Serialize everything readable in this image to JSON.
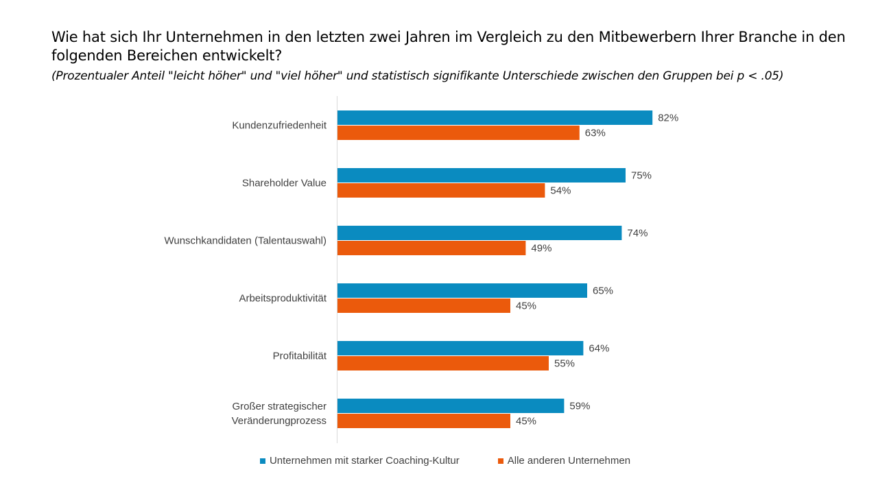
{
  "chart_data": {
    "type": "bar",
    "orientation": "horizontal",
    "title": "Wie hat sich Ihr Unternehmen in den letzten zwei Jahren im Vergleich zu den Mitbewerbern Ihrer Branche in den folgenden Bereichen entwickelt?",
    "subtitle": "(Prozentualer Anteil \"leicht höher\" und \"viel höher\" und statistisch signifikante Unterschiede zwischen den Gruppen bei p < .05)",
    "categories": [
      [
        "Kundenzufriedenheit"
      ],
      [
        "Shareholder Value"
      ],
      [
        "Wunschkandidaten (Talentauswahl)"
      ],
      [
        "Arbeitsproduktivität"
      ],
      [
        "Profitabilität"
      ],
      [
        "Großer strategischer",
        "Veränderungprozess"
      ]
    ],
    "series": [
      {
        "name": "Unternehmen mit starker Coaching-Kultur",
        "color": "#0a8bc0",
        "values": [
          82,
          75,
          74,
          65,
          64,
          59
        ]
      },
      {
        "name": "Alle anderen Unternehmen",
        "color": "#eb5a0c",
        "values": [
          63,
          54,
          49,
          45,
          55,
          45
        ]
      }
    ],
    "value_suffix": "%",
    "xlim": [
      0,
      100
    ],
    "grid": false,
    "legend_position": "bottom"
  }
}
